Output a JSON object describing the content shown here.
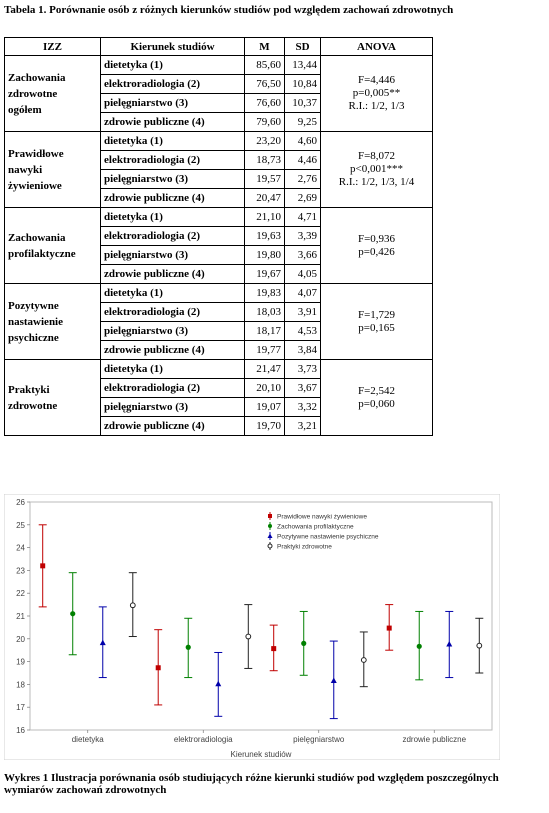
{
  "table_caption": "Tabela 1. Porównanie osób z różnych kierunków studiów pod względem zachowań zdrowotnych",
  "headers": [
    "IZZ",
    "Kierunek studiów",
    "M",
    "SD",
    "ANOVA"
  ],
  "groups": [
    {
      "izz": [
        "Zachowania",
        "zdrowotne",
        "ogółem"
      ],
      "rows": [
        [
          "dietetyka (1)",
          "85,60",
          "13,44"
        ],
        [
          "elektroradiologia (2)",
          "76,50",
          "10,84"
        ],
        [
          "pielęgniarstwo (3)",
          "76,60",
          "10,37"
        ],
        [
          "zdrowie publiczne (4)",
          "79,60",
          "9,25"
        ]
      ],
      "anova": [
        "F=4,446",
        "p=0,005**",
        "R.I.: 1/2, 1/3"
      ]
    },
    {
      "izz": [
        "Prawidłowe",
        "nawyki",
        "żywieniowe"
      ],
      "rows": [
        [
          "dietetyka (1)",
          "23,20",
          "4,60"
        ],
        [
          "elektroradiologia (2)",
          "18,73",
          "4,46"
        ],
        [
          "pielęgniarstwo (3)",
          "19,57",
          "2,76"
        ],
        [
          "zdrowie publiczne (4)",
          "20,47",
          "2,69"
        ]
      ],
      "anova": [
        "F=8,072",
        "p<0,001***",
        "R.I.: 1/2, 1/3, 1/4"
      ]
    },
    {
      "izz": [
        "Zachowania",
        "profilaktyczne"
      ],
      "rows": [
        [
          "dietetyka (1)",
          "21,10",
          "4,71"
        ],
        [
          "elektroradiologia (2)",
          "19,63",
          "3,39"
        ],
        [
          "pielęgniarstwo (3)",
          "19,80",
          "3,66"
        ],
        [
          "zdrowie publiczne (4)",
          "19,67",
          "4,05"
        ]
      ],
      "anova": [
        "F=0,936",
        "p=0,426"
      ]
    },
    {
      "izz": [
        "Pozytywne",
        "nastawienie",
        "psychiczne"
      ],
      "rows": [
        [
          "dietetyka (1)",
          "19,83",
          "4,07"
        ],
        [
          "elektroradiologia (2)",
          "18,03",
          "3,91"
        ],
        [
          "pielęgniarstwo (3)",
          "18,17",
          "4,53"
        ],
        [
          "zdrowie publiczne (4)",
          "19,77",
          "3,84"
        ]
      ],
      "anova": [
        "F=1,729",
        "p=0,165"
      ]
    },
    {
      "izz": [
        "Praktyki",
        "zdrowotne"
      ],
      "rows": [
        [
          "dietetyka (1)",
          "21,47",
          "3,73"
        ],
        [
          "elektroradiologia (2)",
          "20,10",
          "3,67"
        ],
        [
          "pielęgniarstwo (3)",
          "19,07",
          "3,32"
        ],
        [
          "zdrowie publiczne (4)",
          "19,70",
          "3,21"
        ]
      ],
      "anova": [
        "F=2,542",
        "p=0,060"
      ]
    }
  ],
  "chart_data": {
    "type": "scatter",
    "xlabel": "Kierunek studiów",
    "ylabel": "",
    "categories": [
      "dietetyka",
      "elektroradiologia",
      "pielęgniarstwo",
      "zdrowie publiczne"
    ],
    "ylim": [
      16,
      26
    ],
    "yticks": [
      16,
      17,
      18,
      19,
      20,
      21,
      22,
      23,
      24,
      25,
      26
    ],
    "grid": false,
    "legend_position": "top-right",
    "series": [
      {
        "name": "Prawidłowe nawyki żywieniowe",
        "color": "#c00000",
        "marker": "square",
        "mean": [
          23.2,
          18.73,
          19.57,
          20.47
        ],
        "lower": [
          21.4,
          17.1,
          18.6,
          19.5
        ],
        "upper": [
          25.0,
          20.4,
          20.6,
          21.5
        ]
      },
      {
        "name": "Zachowania profilaktyczne",
        "color": "#008000",
        "marker": "circle",
        "mean": [
          21.1,
          19.63,
          19.8,
          19.67
        ],
        "lower": [
          19.3,
          18.3,
          18.4,
          18.2
        ],
        "upper": [
          22.9,
          20.9,
          21.2,
          21.2
        ]
      },
      {
        "name": "Pozytywne nastawienie psychiczne",
        "color": "#0000aa",
        "marker": "triangle",
        "mean": [
          19.83,
          18.03,
          18.17,
          19.77
        ],
        "lower": [
          18.3,
          16.6,
          16.5,
          18.3
        ],
        "upper": [
          21.4,
          19.4,
          19.9,
          21.2
        ]
      },
      {
        "name": "Praktyki zdrowotne",
        "color": "#222222",
        "marker": "circle-open",
        "mean": [
          21.47,
          20.1,
          19.07,
          19.7
        ],
        "lower": [
          20.1,
          18.7,
          17.9,
          18.5
        ],
        "upper": [
          22.9,
          21.5,
          20.3,
          20.9
        ]
      }
    ]
  },
  "figure_caption": "Wykres 1 Ilustracja porównania osób studiujących różne kierunki studiów pod względem poszczególnych wymiarów zachowań zdrowotnych"
}
